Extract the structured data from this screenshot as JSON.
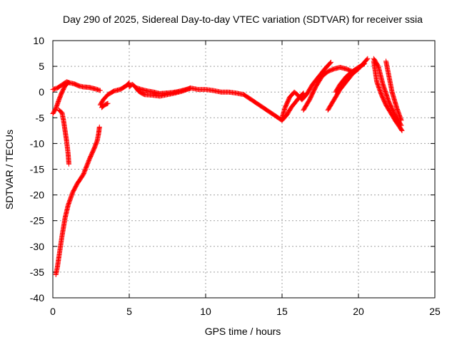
{
  "chart_data": {
    "type": "scatter",
    "title": "Day 290 of 2025, Sidereal Day-to-day VTEC variation (SDTVAR) for receiver ssia",
    "xlabel": "GPS time / hours",
    "ylabel": "SDTVAR / TECUs",
    "xlim": [
      0,
      25
    ],
    "ylim": [
      -40,
      10
    ],
    "xticks": [
      0,
      5,
      10,
      15,
      20,
      25
    ],
    "yticks": [
      -40,
      -35,
      -30,
      -25,
      -20,
      -15,
      -10,
      -5,
      0,
      5,
      10
    ],
    "grid": true,
    "marker": "plus",
    "series": [
      {
        "name": "SDTVAR",
        "color": "#ff0000",
        "segments": [
          {
            "x": [
              0.0,
              0.3,
              0.6,
              0.9,
              1.1,
              1.4,
              1.7,
              2.0,
              2.4,
              2.8,
              3.1
            ],
            "y": [
              0.5,
              0.8,
              1.4,
              2.0,
              1.8,
              1.6,
              1.2,
              1.0,
              0.9,
              0.6,
              0.3
            ]
          },
          {
            "x": [
              0.0,
              0.2,
              0.4,
              0.6,
              0.8,
              1.0
            ],
            "y": [
              -4.2,
              -3.2,
              -1.5,
              0.0,
              1.2,
              1.8
            ]
          },
          {
            "x": [
              0.4,
              0.6,
              0.7,
              0.8,
              0.9,
              1.0,
              1.05
            ],
            "y": [
              -3.5,
              -4.0,
              -5.5,
              -7.5,
              -9.5,
              -12.0,
              -14.0
            ]
          },
          {
            "x": [
              0.2,
              0.3,
              0.4,
              0.6,
              0.8,
              1.0,
              1.3,
              1.6,
              2.0,
              2.4,
              2.7,
              2.9,
              3.0,
              3.05
            ],
            "y": [
              -35.5,
              -34.0,
              -32.0,
              -28.0,
              -24.5,
              -22.0,
              -19.5,
              -17.8,
              -16.0,
              -13.0,
              -11.0,
              -9.5,
              -8.0,
              -6.8
            ]
          },
          {
            "x": [
              3.1,
              3.3,
              3.6,
              4.0,
              4.4,
              4.8,
              5.0
            ],
            "y": [
              -2.5,
              -1.5,
              -0.5,
              0.2,
              0.5,
              1.2,
              1.8
            ]
          },
          {
            "x": [
              3.2,
              3.4,
              3.6
            ],
            "y": [
              -3.0,
              -2.5,
              -2.2
            ]
          },
          {
            "x": [
              5.0,
              5.2,
              5.4,
              5.6,
              5.8,
              6.0,
              6.5,
              7.0,
              7.5,
              8.0,
              8.5,
              9.0,
              9.5,
              10.0,
              10.5,
              11.0,
              11.5,
              12.0,
              12.5,
              13.0,
              13.5,
              14.0,
              14.5,
              15.0
            ],
            "y": [
              1.0,
              1.5,
              1.0,
              0.2,
              -0.2,
              -0.5,
              -0.6,
              -0.8,
              -0.5,
              -0.2,
              0.2,
              0.8,
              0.5,
              0.5,
              0.3,
              0.0,
              0.0,
              -0.2,
              -0.5,
              -1.5,
              -2.5,
              -3.5,
              -4.5,
              -5.5
            ]
          },
          {
            "x": [
              5.5,
              5.8,
              6.2,
              6.6,
              7.0,
              7.4,
              7.8,
              8.2,
              8.6,
              9.0
            ],
            "y": [
              0.8,
              0.5,
              0.2,
              0.0,
              -0.3,
              -0.2,
              -0.1,
              0.1,
              0.4,
              0.7
            ]
          },
          {
            "x": [
              15.0,
              15.2,
              15.5,
              15.8,
              16.0,
              16.3,
              16.6,
              17.0,
              17.4,
              17.8,
              18.2
            ],
            "y": [
              -5.0,
              -3.0,
              -1.0,
              0.0,
              -0.5,
              -1.5,
              -0.5,
              1.5,
              3.0,
              4.5,
              5.8
            ]
          },
          {
            "x": [
              15.0,
              15.3,
              15.6,
              16.0,
              16.4
            ],
            "y": [
              -5.5,
              -4.5,
              -3.0,
              -1.5,
              -0.2
            ]
          },
          {
            "x": [
              16.4,
              16.8,
              17.2,
              17.6,
              18.0,
              18.4,
              18.8,
              19.2,
              19.6,
              20.0
            ],
            "y": [
              -3.5,
              -1.5,
              1.0,
              3.0,
              4.0,
              4.5,
              4.8,
              4.5,
              4.0,
              4.5
            ]
          },
          {
            "x": [
              18.0,
              18.4,
              18.8,
              19.2,
              19.6,
              20.0,
              20.3,
              20.6
            ],
            "y": [
              -3.5,
              -1.5,
              0.5,
              2.0,
              3.5,
              4.5,
              5.5,
              6.5
            ]
          },
          {
            "x": [
              18.5,
              18.8,
              19.2,
              19.6,
              20.0,
              20.4
            ],
            "y": [
              0.0,
              1.5,
              3.0,
              4.0,
              4.8,
              5.5
            ]
          },
          {
            "x": [
              21.0,
              21.3,
              21.6,
              22.0,
              22.4,
              22.8
            ],
            "y": [
              6.5,
              5.0,
              1.5,
              -2.0,
              -4.5,
              -6.5
            ]
          },
          {
            "x": [
              21.0,
              21.2,
              21.5,
              21.8,
              22.1,
              22.4,
              22.7,
              22.85
            ],
            "y": [
              6.0,
              2.0,
              -0.5,
              -2.5,
              -4.0,
              -5.5,
              -6.8,
              -7.5
            ]
          },
          {
            "x": [
              21.8,
              22.0,
              22.2,
              22.5,
              22.8
            ],
            "y": [
              6.0,
              3.0,
              0.0,
              -3.0,
              -5.5
            ]
          }
        ]
      }
    ]
  }
}
